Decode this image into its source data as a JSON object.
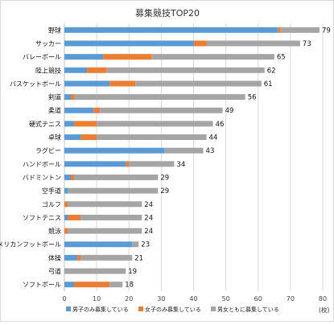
{
  "chart_data": {
    "type": "bar",
    "orientation": "horizontal",
    "stacked": true,
    "title": "募集競技TOP20",
    "unit_label": "(校)",
    "xlim": [
      0,
      80
    ],
    "xticks": [
      0,
      10,
      20,
      30,
      40,
      50,
      60,
      70,
      80
    ],
    "grid": true,
    "legend_position": "bottom",
    "categories": [
      "野球",
      "サッカー",
      "バレーボール",
      "陸上競技",
      "バスケットボール",
      "剣道",
      "柔道",
      "硬式テニス",
      "卓球",
      "ラグビー",
      "ハンドボール",
      "バドミントン",
      "空手道",
      "ゴルフ",
      "ソフトテニス",
      "競泳",
      "アメリカンフットボール",
      "体操",
      "弓道",
      "ソフトボール"
    ],
    "totals": [
      79,
      73,
      65,
      62,
      61,
      56,
      49,
      46,
      44,
      43,
      34,
      29,
      29,
      24,
      24,
      24,
      23,
      21,
      19,
      18
    ],
    "series": [
      {
        "name": "男子のみ募集している",
        "color": "#5b9bd5",
        "values": [
          66,
          40,
          12,
          7,
          14,
          2,
          9,
          3,
          5,
          31,
          19,
          2,
          1,
          0,
          1,
          0,
          21,
          4,
          0,
          3
        ]
      },
      {
        "name": "女子のみ募集している",
        "color": "#ed7d31",
        "values": [
          1,
          4,
          15,
          6,
          8,
          1,
          2,
          7,
          5,
          0,
          1,
          1,
          0,
          1,
          4,
          1,
          0,
          1,
          0,
          11
        ]
      },
      {
        "name": "男女ともに募集している",
        "color": "#a5a5a5",
        "values": [
          12,
          29,
          38,
          49,
          39,
          53,
          38,
          36,
          34,
          12,
          14,
          26,
          28,
          23,
          19,
          23,
          2,
          16,
          19,
          4
        ]
      }
    ]
  }
}
